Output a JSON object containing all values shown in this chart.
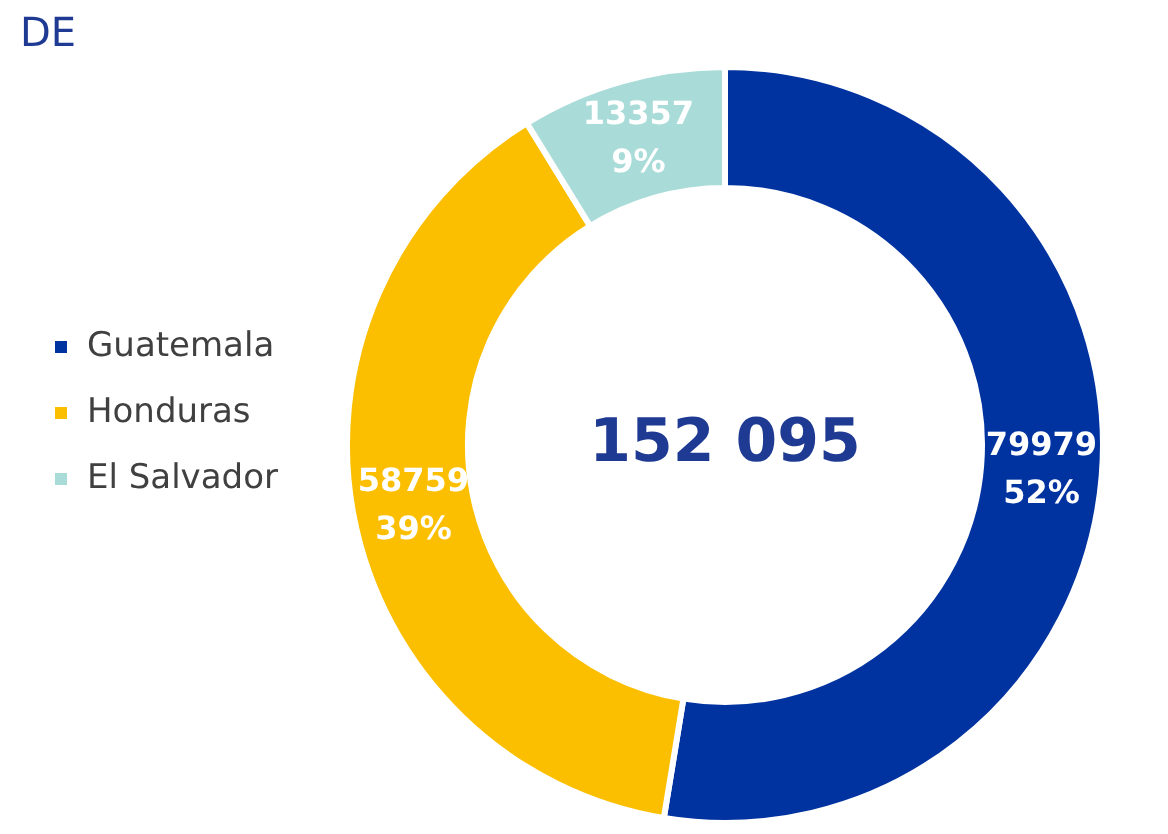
{
  "chart_data": {
    "type": "donut",
    "title": "DE",
    "categories": [
      "Guatemala",
      "Honduras",
      "El Salvador"
    ],
    "values": [
      79979,
      58759,
      13357
    ],
    "colors": [
      "#0033a0",
      "#fbbf00",
      "#a9dcd8"
    ],
    "value_labels": [
      "79979\n52%",
      "58759\n39%",
      "13357\n9%"
    ],
    "annotations": [
      "152 095"
    ],
    "legend": "left"
  }
}
